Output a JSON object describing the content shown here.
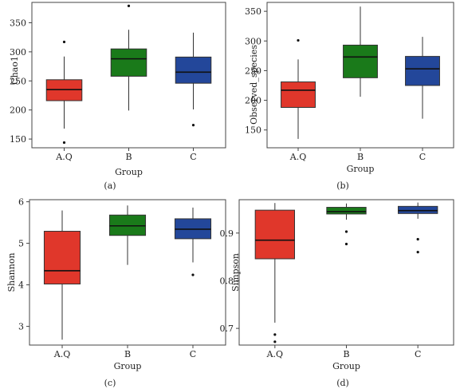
{
  "colors": {
    "A.Q": "#e0372b",
    "B": "#1a7a1a",
    "C": "#23479a",
    "frame": "#444444"
  },
  "chart_data": [
    {
      "type": "box",
      "panel_label": "(a)",
      "xlabel": "Group",
      "ylabel": "Chao1",
      "categories": [
        "A.Q",
        "B",
        "C"
      ],
      "ylim": [
        135,
        385
      ],
      "yticks": [
        150,
        200,
        250,
        300,
        350
      ],
      "boxes": [
        {
          "group": "A.Q",
          "min": 168,
          "q1": 216,
          "median": 235,
          "q3": 252,
          "max": 292,
          "outliers": [
            317,
            144
          ]
        },
        {
          "group": "B",
          "min": 199,
          "q1": 258,
          "median": 288,
          "q3": 305,
          "max": 338,
          "outliers": [
            379
          ]
        },
        {
          "group": "C",
          "min": 201,
          "q1": 246,
          "median": 265,
          "q3": 291,
          "max": 333,
          "outliers": [
            174
          ]
        }
      ]
    },
    {
      "type": "box",
      "panel_label": "(b)",
      "xlabel": "Group",
      "ylabel": "Observed_species",
      "categories": [
        "A.Q",
        "B",
        "C"
      ],
      "ylim": [
        120,
        365
      ],
      "yticks": [
        150,
        200,
        250,
        300,
        350
      ],
      "boxes": [
        {
          "group": "A.Q",
          "min": 135,
          "q1": 188,
          "median": 217,
          "q3": 231,
          "max": 269,
          "outliers": [
            301
          ]
        },
        {
          "group": "B",
          "min": 206,
          "q1": 238,
          "median": 273,
          "q3": 293,
          "max": 358,
          "outliers": []
        },
        {
          "group": "C",
          "min": 169,
          "q1": 225,
          "median": 253,
          "q3": 274,
          "max": 307,
          "outliers": []
        }
      ]
    },
    {
      "type": "box",
      "panel_label": "(c)",
      "xlabel": "Group",
      "ylabel": "Shannon",
      "categories": [
        "A.Q",
        "B",
        "C"
      ],
      "ylim": [
        2.55,
        6.05
      ],
      "yticks": [
        3,
        4,
        5,
        6
      ],
      "boxes": [
        {
          "group": "A.Q",
          "min": 2.68,
          "q1": 4.02,
          "median": 4.34,
          "q3": 5.29,
          "max": 5.79,
          "outliers": []
        },
        {
          "group": "B",
          "min": 4.48,
          "q1": 5.19,
          "median": 5.42,
          "q3": 5.68,
          "max": 5.91,
          "outliers": []
        },
        {
          "group": "C",
          "min": 4.54,
          "q1": 5.11,
          "median": 5.34,
          "q3": 5.59,
          "max": 5.86,
          "outliers": [
            4.24
          ]
        }
      ]
    },
    {
      "type": "box",
      "panel_label": "(d)",
      "xlabel": "Group",
      "ylabel": "Simpson",
      "categories": [
        "A.Q",
        "B",
        "C"
      ],
      "ylim": [
        0.665,
        0.97
      ],
      "yticks": [
        0.7,
        0.8,
        0.9
      ],
      "boxes": [
        {
          "group": "A.Q",
          "min": 0.712,
          "q1": 0.846,
          "median": 0.885,
          "q3": 0.948,
          "max": 0.963,
          "outliers": [
            0.687,
            0.672
          ]
        },
        {
          "group": "B",
          "min": 0.928,
          "q1": 0.94,
          "median": 0.945,
          "q3": 0.954,
          "max": 0.962,
          "outliers": [
            0.903,
            0.877
          ]
        },
        {
          "group": "C",
          "min": 0.93,
          "q1": 0.941,
          "median": 0.947,
          "q3": 0.956,
          "max": 0.964,
          "outliers": [
            0.887,
            0.86
          ]
        }
      ]
    }
  ]
}
